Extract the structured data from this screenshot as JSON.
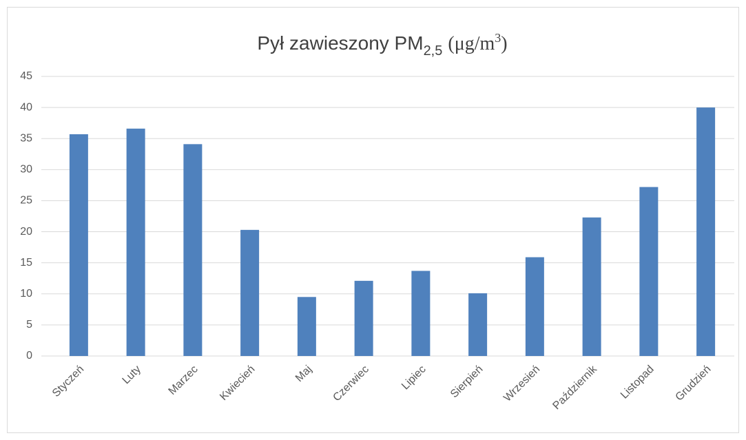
{
  "chart_data": {
    "type": "bar",
    "title": [
      "Pył zawieszony PM",
      "2,5",
      "(μg/m",
      "3",
      ")"
    ],
    "categories": [
      "Styczeń",
      "Luty",
      "Marzec",
      "Kwiecień",
      "Maj",
      "Czerwiec",
      "Lipiec",
      "Sierpień",
      "Wrzesień",
      "Październik",
      "Listopad",
      "Grudzień"
    ],
    "values": [
      35.7,
      36.6,
      34.1,
      20.3,
      9.5,
      12.1,
      13.7,
      10.1,
      15.9,
      22.3,
      27.2,
      40.0
    ],
    "color": "#4f81bd",
    "ylim": [
      0,
      45
    ],
    "yticks": [
      0,
      5,
      10,
      15,
      20,
      25,
      30,
      35,
      40,
      45
    ],
    "grid": true
  }
}
